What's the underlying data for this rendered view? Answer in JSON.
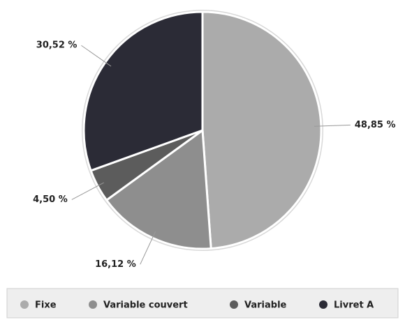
{
  "chart_data": {
    "type": "pie",
    "categories": [
      "Fixe",
      "Variable couvert",
      "Variable",
      "Livret A"
    ],
    "values": [
      48.85,
      16.12,
      4.5,
      30.52
    ],
    "value_labels": [
      "48,85 %",
      "16,12 %",
      "4,50 %",
      "30,52 %"
    ],
    "colors": [
      "#ababab",
      "#8e8e8e",
      "#5c5c5c",
      "#2b2b36"
    ],
    "legend": "bottom"
  }
}
